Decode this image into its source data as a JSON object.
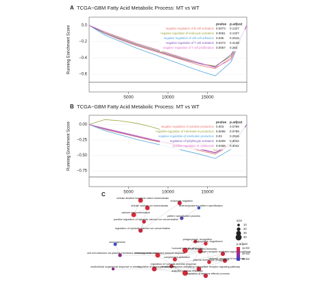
{
  "chart_data": [
    {
      "type": "line",
      "panel": "A",
      "title": "TCGA−GBM Fatty Acid Metabolic Process: MT vs WT",
      "ylabel": "Running Enrichment Score",
      "x": [
        0,
        2000,
        4000,
        6000,
        8000,
        10000,
        12000,
        14000,
        16000,
        18000,
        20000
      ],
      "xlim": [
        0,
        20000
      ],
      "xticks": [
        5000,
        10000,
        15000
      ],
      "ylim": [
        -0.7,
        0.1
      ],
      "yticks": [
        {
          "value": 0,
          "label": "0.0"
        },
        {
          "value": -0.2,
          "label": "−0.2"
        },
        {
          "value": -0.4,
          "label": "−0.4"
        },
        {
          "value": -0.6,
          "label": "−0.6"
        }
      ],
      "table_header": [
        "pvalue",
        "p.adjust"
      ],
      "series": [
        {
          "name": "negative regulation of B cell activation",
          "color": "#e8736b",
          "pvalue": "0.0073",
          "p_adjust": "0.1327",
          "values": [
            0,
            -0.1,
            -0.18,
            -0.25,
            -0.31,
            -0.37,
            -0.43,
            -0.49,
            -0.53,
            -0.4,
            0
          ]
        },
        {
          "name": "negative regulation of leukocyte activation",
          "color": "#9aa33a",
          "pvalue": "0.0061",
          "p_adjust": "0.1327",
          "values": [
            0,
            -0.09,
            -0.16,
            -0.23,
            -0.29,
            -0.35,
            -0.41,
            -0.47,
            -0.5,
            -0.38,
            0
          ]
        },
        {
          "name": "negative regulation of cell-cell adhesion",
          "color": "#4ea4d9",
          "pvalue": "0.036",
          "p_adjust": "0.2616",
          "values": [
            0,
            -0.12,
            -0.2,
            -0.28,
            -0.35,
            -0.42,
            -0.49,
            -0.56,
            -0.62,
            -0.45,
            0
          ]
        },
        {
          "name": "negative regulation of T cell activation",
          "color": "#7b4fb5",
          "pvalue": "0.0473",
          "p_adjust": "0.3139",
          "values": [
            0,
            -0.1,
            -0.17,
            -0.24,
            -0.3,
            -0.36,
            -0.42,
            -0.47,
            -0.51,
            -0.36,
            0
          ]
        },
        {
          "name": "negative regulation of T cell proliferation",
          "color": "#e070c8",
          "pvalue": "0.0067",
          "p_adjust": "0.264",
          "values": [
            0,
            -0.08,
            -0.15,
            -0.22,
            -0.28,
            -0.34,
            -0.4,
            -0.46,
            -0.52,
            -0.42,
            0
          ]
        }
      ]
    },
    {
      "type": "line",
      "panel": "B",
      "title": "TCGA−GBM Fatty Acid Metabolic Process: MT vs WT",
      "ylabel": "Running Enrichment Score",
      "x": [
        0,
        2000,
        4000,
        6000,
        8000,
        10000,
        12000,
        14000,
        16000,
        18000,
        20000
      ],
      "xlim": [
        0,
        20000
      ],
      "xticks": [
        5000,
        10000,
        15000
      ],
      "ylim": [
        -0.85,
        0.15
      ],
      "yticks": [
        {
          "value": 0,
          "label": "0.00"
        },
        {
          "value": -0.25,
          "label": "−0.25"
        },
        {
          "value": -0.5,
          "label": "−0.50"
        },
        {
          "value": -0.75,
          "label": "−0.75"
        }
      ],
      "table_header": [
        "pvalue",
        "p.adjust"
      ],
      "series": [
        {
          "name": "negative regulation of cytokine production",
          "color": "#e8736b",
          "pvalue": "0.003",
          "p_adjust": "0.0789",
          "values": [
            0,
            -0.08,
            -0.14,
            -0.2,
            -0.26,
            -0.31,
            -0.36,
            -0.42,
            -0.48,
            -0.33,
            0
          ]
        },
        {
          "name": "negative regulation of interleukin-6 production",
          "color": "#9aa33a",
          "pvalue": "0.0065",
          "p_adjust": "0.0789",
          "values": [
            0,
            0.08,
            0.06,
            0.02,
            -0.04,
            -0.12,
            -0.2,
            -0.3,
            -0.42,
            -0.3,
            0
          ]
        },
        {
          "name": "negative regulation of interleukin production",
          "color": "#4ea4d9",
          "pvalue": "0.03",
          "p_adjust": "0.2916",
          "values": [
            0,
            -0.1,
            -0.17,
            -0.24,
            -0.3,
            -0.36,
            -0.42,
            -0.48,
            -0.55,
            -0.4,
            0
          ]
        },
        {
          "name": "regulation of lymphocyte activation",
          "color": "#7b4fb5",
          "pvalue": "0.0409",
          "p_adjust": "0.3042",
          "values": [
            0,
            -0.07,
            -0.13,
            -0.19,
            -0.25,
            -0.3,
            -0.35,
            -0.4,
            -0.46,
            -0.32,
            0
          ]
        },
        {
          "name": "positive regulation of cytokinesis",
          "color": "#e070c8",
          "pvalue": "0.0456",
          "p_adjust": "0.3042",
          "values": [
            0,
            -0.06,
            -0.12,
            -0.18,
            -0.24,
            -0.29,
            -0.34,
            -0.39,
            -0.45,
            -0.31,
            0
          ]
        }
      ]
    }
  ],
  "network": {
    "panel": "C",
    "legend": {
      "size_title": "size",
      "sizes": [
        10,
        20,
        30,
        40
      ],
      "color_title": "p.adjust",
      "color_labels": [
        "1e-03",
        "2e-03",
        "3e-03"
      ]
    },
    "nodes": [
      {
        "label": "cellular divalent inorganic cation homeostasis",
        "size": 30,
        "color": "#d62c3a"
      },
      {
        "label": "leukocyte migration",
        "size": 25,
        "color": "#c8283f"
      },
      {
        "label": "cellular calcium ion homeostasis",
        "size": 28,
        "color": "#d62c3a"
      },
      {
        "label": "anterior/posterior pattern specification",
        "size": 15,
        "color": "#3a4fc0"
      },
      {
        "label": "calcium ion homeostasis",
        "size": 30,
        "color": "#d62c3a"
      },
      {
        "label": "pattern specification process",
        "size": 20,
        "color": "#5a3fb0"
      },
      {
        "label": "positive regulation of cytosolic calcium ion concentration",
        "size": 22,
        "color": "#c8283f"
      },
      {
        "label": "regulation of cytosolic calcium ion concentration",
        "size": 26,
        "color": "#c8283f"
      },
      {
        "label": "axonogenesis",
        "size": 18,
        "color": "#3a4fc0"
      },
      {
        "label": "cell-cell adhesion via plasma-membrane adhesion molecules",
        "size": 20,
        "color": "#8a2c80"
      },
      {
        "label": "phagocytosis, recognition",
        "size": 20,
        "color": "#d62c3a"
      },
      {
        "label": "phagocytosis, engulfment",
        "size": 22,
        "color": "#d62c3a"
      },
      {
        "label": "humoral immune response",
        "size": 35,
        "color": "#d62c3a"
      },
      {
        "label": "immunoglobulin mediated immune response",
        "size": 30,
        "color": "#d62c3a"
      },
      {
        "label": "B cell mediated immunity",
        "size": 30,
        "color": "#d62c3a"
      },
      {
        "label": "complement activation",
        "size": 24,
        "color": "#d62c3a"
      },
      {
        "label": "antigen receptor-mediated signaling pathway",
        "size": 25,
        "color": "#c8283f"
      },
      {
        "label": "defense response to bacterium",
        "size": 25,
        "color": "#c8283f"
      },
      {
        "label": "regulation of humoral immune response",
        "size": 22,
        "color": "#d62c3a"
      },
      {
        "label": "plasma membrane invagination",
        "size": 22,
        "color": "#d62c3a"
      },
      {
        "label": "immune response-activating cell surface receptor signaling pathway",
        "size": 28,
        "color": "#c8283f"
      },
      {
        "label": "regulation of leukocyte activation",
        "size": 30,
        "color": "#c8283f"
      },
      {
        "label": "multicellular organismal response to stress",
        "size": 14,
        "color": "#8a2c80"
      },
      {
        "label": "adaptive immune response",
        "size": 35,
        "color": "#d62c3a"
      },
      {
        "label": "regulation of immune effector process",
        "size": 26,
        "color": "#c8283f"
      }
    ]
  }
}
